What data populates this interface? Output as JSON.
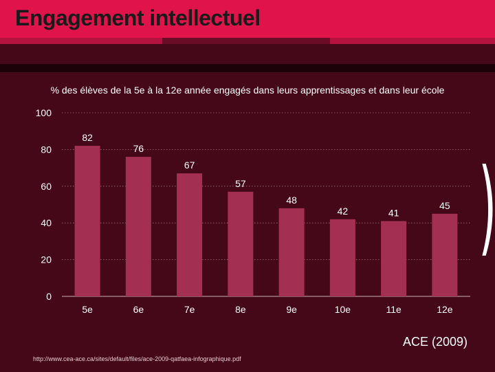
{
  "slide": {
    "title": "Engagement intellectuel",
    "source_label": "ACE (2009)",
    "source_url": "http://www.cea-ace.ca/sites/default/files/ace-2009-qatfaea-infographique.pdf",
    "side_glyph": ")"
  },
  "colors": {
    "background": "#440818",
    "title_bar": "#e0134a",
    "bar": "#a33052",
    "text": "#ffffff"
  },
  "chart_data": {
    "type": "bar",
    "title": "% des élèves de la 5e à la 12e année engagés dans leurs apprentissages et dans leur école",
    "categories": [
      "5e",
      "6e",
      "7e",
      "8e",
      "9e",
      "10e",
      "11e",
      "12e"
    ],
    "values": [
      82,
      76,
      67,
      57,
      48,
      42,
      41,
      45
    ],
    "value_labels": [
      "82",
      "76",
      "67",
      "57",
      "48",
      "42",
      "41",
      "45"
    ],
    "ylim": [
      0,
      100
    ],
    "yticks": [
      0,
      20,
      40,
      60,
      80,
      100
    ],
    "ytick_labels": [
      "0",
      "20",
      "40",
      "60",
      "80",
      "100"
    ],
    "xlabel": "",
    "ylabel": "",
    "grid": true,
    "legend": "none"
  }
}
